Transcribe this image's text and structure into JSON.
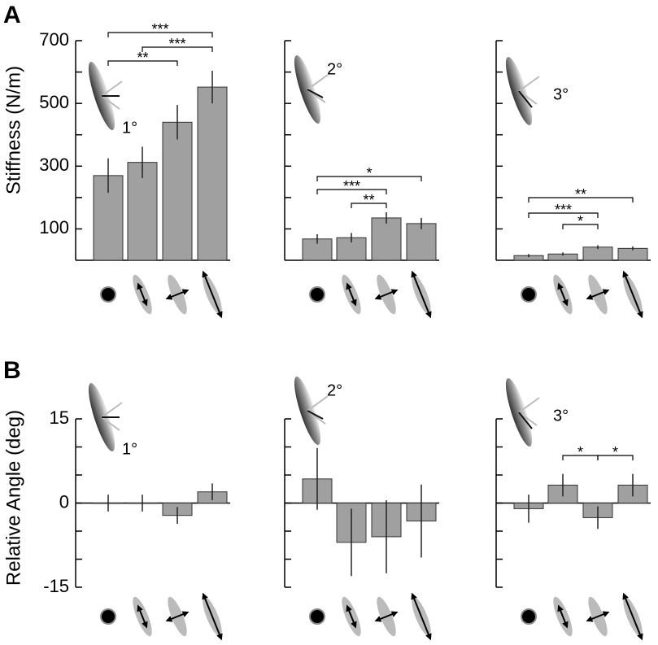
{
  "panel_labels": [
    "A",
    "B"
  ],
  "chart_data": [
    {
      "type": "bar",
      "y_label": "Stiffness (N/m)",
      "inset_label": "1°",
      "categories": [
        null,
        null,
        null,
        null
      ],
      "values": [
        270,
        312,
        440,
        552
      ],
      "errors": [
        55,
        50,
        55,
        52
      ],
      "color": "#a0a0a0",
      "ylim": [
        0,
        700
      ],
      "yticks": [
        100,
        300,
        500,
        700
      ],
      "minor_yticks": [
        200,
        400,
        600
      ],
      "tick_labels": true,
      "significance": [
        {
          "from": 0,
          "to": 3,
          "label": "***"
        },
        {
          "from": 1,
          "to": 3,
          "label": "***"
        },
        {
          "from": 0,
          "to": 2,
          "label": "**"
        }
      ]
    },
    {
      "type": "bar",
      "inset_label": "2°",
      "categories": [
        null,
        null,
        null,
        null
      ],
      "values": [
        68,
        72,
        135,
        117
      ],
      "errors": [
        15,
        15,
        18,
        18
      ],
      "color": "#a0a0a0",
      "ylim": [
        0,
        700
      ],
      "yticks": [
        100,
        300,
        500,
        700
      ],
      "minor_yticks": [
        200,
        400,
        600
      ],
      "tick_labels": false,
      "significance": [
        {
          "from": 0,
          "to": 3,
          "label": "*"
        },
        {
          "from": 0,
          "to": 2,
          "label": "***"
        },
        {
          "from": 1,
          "to": 2,
          "label": "**"
        }
      ]
    },
    {
      "type": "bar",
      "inset_label": "3°",
      "categories": [
        null,
        null,
        null,
        null
      ],
      "values": [
        15,
        20,
        42,
        38
      ],
      "errors": [
        5,
        5,
        6,
        6
      ],
      "color": "#a0a0a0",
      "ylim": [
        0,
        700
      ],
      "yticks": [
        100,
        300,
        500,
        700
      ],
      "minor_yticks": [
        200,
        400,
        600
      ],
      "tick_labels": false,
      "significance": [
        {
          "from": 0,
          "to": 3,
          "label": "**"
        },
        {
          "from": 0,
          "to": 2,
          "label": "***"
        },
        {
          "from": 1,
          "to": 2,
          "label": "*"
        }
      ]
    },
    {
      "type": "bar",
      "y_label": "Relative Angle (deg)",
      "inset_label": "1°",
      "categories": [
        null,
        null,
        null,
        null
      ],
      "values": [
        0,
        0,
        -2.2,
        2
      ],
      "errors": [
        1.5,
        1.5,
        1.5,
        1.5
      ],
      "color": "#a0a0a0",
      "ylim": [
        -15,
        15
      ],
      "yticks": [
        -15,
        0,
        15
      ],
      "minor_yticks": [
        -10,
        -5,
        5,
        10
      ],
      "tick_labels": true,
      "significance": []
    },
    {
      "type": "bar",
      "inset_label": "2°",
      "categories": [
        null,
        null,
        null,
        null
      ],
      "values": [
        4.3,
        -7,
        -6,
        -3.2
      ],
      "errors": [
        5.5,
        6,
        6.5,
        6.5
      ],
      "color": "#a0a0a0",
      "ylim": [
        -15,
        15
      ],
      "yticks": [
        -15,
        0,
        15
      ],
      "minor_yticks": [
        -10,
        -5,
        5,
        10
      ],
      "tick_labels": false,
      "significance": []
    },
    {
      "type": "bar",
      "inset_label": "3°",
      "categories": [
        null,
        null,
        null,
        null
      ],
      "values": [
        -1,
        3.2,
        -2.6,
        3.2
      ],
      "errors": [
        2.5,
        2,
        2,
        2
      ],
      "color": "#a0a0a0",
      "ylim": [
        -15,
        15
      ],
      "yticks": [
        -15,
        0,
        15
      ],
      "minor_yticks": [
        -10,
        -5,
        5,
        10
      ],
      "tick_labels": false,
      "significance": [
        {
          "from": 1,
          "to": 2,
          "label": "*"
        },
        {
          "from": 2,
          "to": 3,
          "label": "*"
        }
      ]
    }
  ]
}
